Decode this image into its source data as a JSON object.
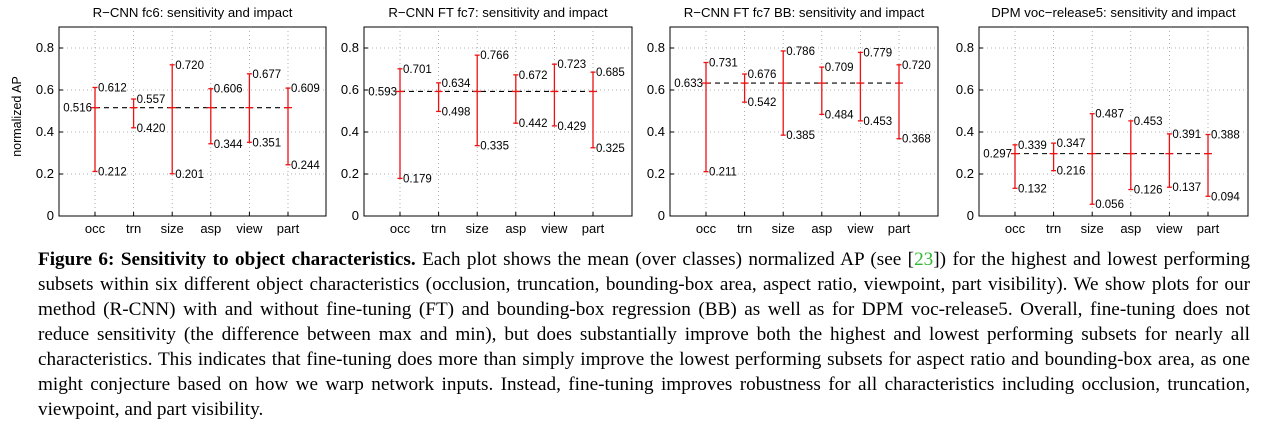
{
  "chart_data": [
    {
      "type": "errorbar",
      "title": "R−CNN fc6: sensitivity and impact",
      "ylabel": "normalized AP",
      "ylim": [
        0,
        0.9
      ],
      "yticks": [
        0,
        0.2,
        0.4,
        0.6,
        0.8
      ],
      "grid": true,
      "categories": [
        "occ",
        "trn",
        "size",
        "asp",
        "view",
        "part"
      ],
      "mean": 0.516,
      "mean_label": "0.516",
      "max": [
        0.612,
        0.557,
        0.72,
        0.606,
        0.677,
        0.609
      ],
      "min": [
        0.212,
        0.42,
        0.201,
        0.344,
        0.351,
        0.244
      ],
      "max_labels": [
        "0.612",
        "0.557",
        "0.720",
        "0.606",
        "0.677",
        "0.609"
      ],
      "min_labels": [
        "0.212",
        "0.420",
        "0.201",
        "0.344",
        "0.351",
        "0.244"
      ]
    },
    {
      "type": "errorbar",
      "title": "R−CNN FT fc7: sensitivity and impact",
      "ylabel": "",
      "ylim": [
        0,
        0.9
      ],
      "yticks": [
        0,
        0.2,
        0.4,
        0.6,
        0.8
      ],
      "grid": true,
      "categories": [
        "occ",
        "trn",
        "size",
        "asp",
        "view",
        "part"
      ],
      "mean": 0.593,
      "mean_label": "0.593",
      "max": [
        0.701,
        0.634,
        0.766,
        0.672,
        0.723,
        0.685
      ],
      "min": [
        0.179,
        0.498,
        0.335,
        0.442,
        0.429,
        0.325
      ],
      "max_labels": [
        "0.701",
        "0.634",
        "0.766",
        "0.672",
        "0.723",
        "0.685"
      ],
      "min_labels": [
        "0.179",
        "0.498",
        "0.335",
        "0.442",
        "0.429",
        "0.325"
      ]
    },
    {
      "type": "errorbar",
      "title": "R−CNN FT fc7 BB: sensitivity and impact",
      "ylabel": "",
      "ylim": [
        0,
        0.9
      ],
      "yticks": [
        0,
        0.2,
        0.4,
        0.6,
        0.8
      ],
      "grid": true,
      "categories": [
        "occ",
        "trn",
        "size",
        "asp",
        "view",
        "part"
      ],
      "mean": 0.633,
      "mean_label": "0.633",
      "max": [
        0.731,
        0.676,
        0.786,
        0.709,
        0.779,
        0.72
      ],
      "min": [
        0.211,
        0.542,
        0.385,
        0.484,
        0.453,
        0.368
      ],
      "max_labels": [
        "0.731",
        "0.676",
        "0.786",
        "0.709",
        "0.779",
        "0.720"
      ],
      "min_labels": [
        "0.211",
        "0.542",
        "0.385",
        "0.484",
        "0.453",
        "0.368"
      ]
    },
    {
      "type": "errorbar",
      "title": "DPM voc−release5: sensitivity and impact",
      "ylabel": "",
      "ylim": [
        0,
        0.9
      ],
      "yticks": [
        0,
        0.2,
        0.4,
        0.6,
        0.8
      ],
      "grid": true,
      "categories": [
        "occ",
        "trn",
        "size",
        "asp",
        "view",
        "part"
      ],
      "mean": 0.297,
      "mean_label": "0.297",
      "max": [
        0.339,
        0.347,
        0.487,
        0.453,
        0.391,
        0.388
      ],
      "min": [
        0.132,
        0.216,
        0.056,
        0.126,
        0.137,
        0.094
      ],
      "max_labels": [
        "0.339",
        "0.347",
        "0.487",
        "0.453",
        "0.391",
        "0.388"
      ],
      "min_labels": [
        "0.132",
        "0.216",
        "0.056",
        "0.126",
        "0.137",
        "0.094"
      ]
    }
  ],
  "caption": {
    "label": "Figure 6: Sensitivity to object characteristics.",
    "text_before_ref": " Each plot shows the mean (over classes) normalized AP (see [",
    "ref": "23",
    "text_after_ref": "]) for the highest and lowest performing subsets within six different object characteristics (occlusion, truncation, bounding-box area, aspect ratio, viewpoint, part visibility). We show plots for our method (R-CNN) with and without fine-tuning (FT) and bounding-box regression (BB) as well as for DPM voc-release5. Overall, fine-tuning does not reduce sensitivity (the difference between max and min), but does substantially improve both the highest and lowest performing subsets for nearly all characteristics. This indicates that fine-tuning does more than simply improve the lowest performing subsets for aspect ratio and bounding-box area, as one might conjecture based on how we warp network inputs. Instead, fine-tuning improves robustness for all characteristics including occlusion, truncation, viewpoint, and part visibility."
  }
}
